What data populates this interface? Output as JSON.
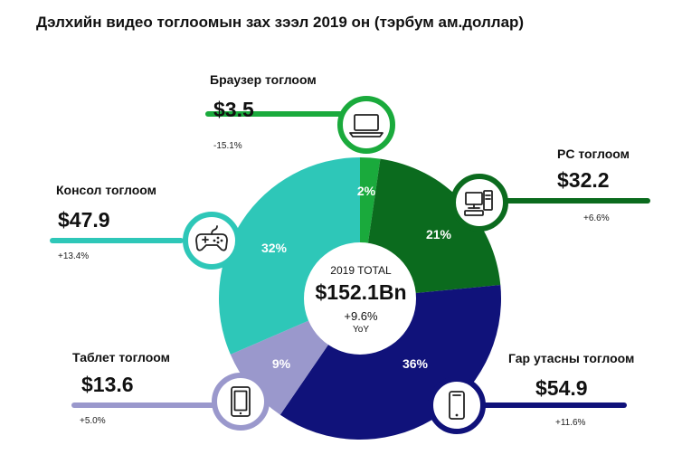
{
  "title": "Дэлхийн видео тоглоомын зах зээл 2019 он (тэрбум ам.доллар)",
  "center": {
    "label": "2019 TOTAL",
    "value": "$152.1Bn",
    "change": "+9.6%",
    "sublabel": "YoY"
  },
  "chart_data": {
    "type": "pie",
    "title": "Дэлхийн видео тоглоомын зах зээл 2019 он (тэрбум ам.доллар)",
    "total": 152.1,
    "total_change": "+9.6%",
    "slices": [
      {
        "label": "Браузер тоглоом",
        "value": 3.5,
        "value_text": "$3.5",
        "percent": 2,
        "percent_text": "2%",
        "change": "-15.1%",
        "color": "#1aaa3c",
        "icon": "laptop-icon"
      },
      {
        "label": "PC тоглоом",
        "value": 32.2,
        "value_text": "$32.2",
        "percent": 21,
        "percent_text": "21%",
        "change": "+6.6%",
        "color": "#0b6b1e",
        "icon": "desktop-pc-icon"
      },
      {
        "label": "Гар утасны тоглоом",
        "value": 54.9,
        "value_text": "$54.9",
        "percent": 36,
        "percent_text": "36%",
        "change": "+11.6%",
        "color": "#10127a",
        "icon": "smartphone-icon"
      },
      {
        "label": "Таблет тоглоом",
        "value": 13.6,
        "value_text": "$13.6",
        "percent": 9,
        "percent_text": "9%",
        "change": "+5.0%",
        "color": "#9a98cc",
        "icon": "tablet-icon"
      },
      {
        "label": "Консол тоглоом",
        "value": 47.9,
        "value_text": "$47.9",
        "percent": 32,
        "percent_text": "32%",
        "change": "+13.4%",
        "color": "#2ec7b8",
        "icon": "gamepad-icon"
      }
    ]
  }
}
